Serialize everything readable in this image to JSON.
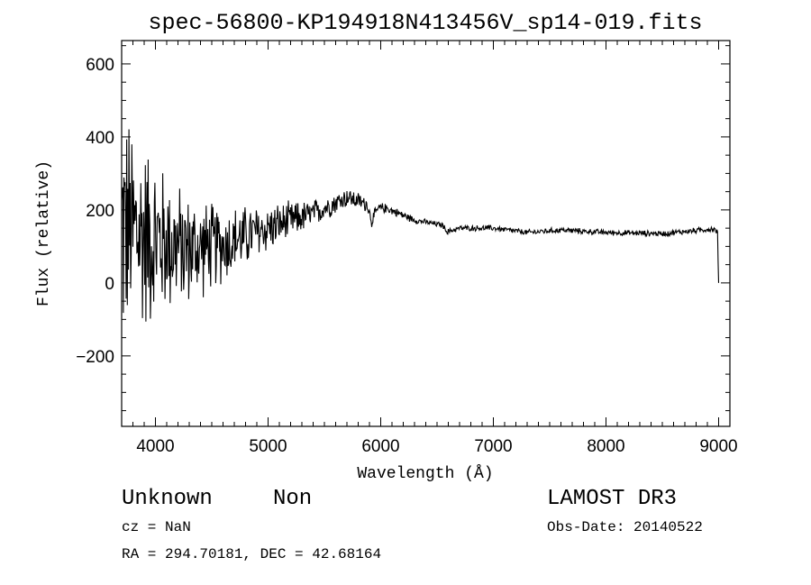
{
  "chart_data": {
    "type": "line",
    "title": "spec-56800-KP194918N413456V_sp14-019.fits",
    "xlabel": "Wavelength (Å)",
    "ylabel": "Flux (relative)",
    "xlim": [
      3700,
      9100
    ],
    "ylim": [
      -393,
      664
    ],
    "x_ticks": [
      4000,
      5000,
      6000,
      7000,
      8000,
      9000
    ],
    "x_tick_labels": [
      "4000",
      "5000",
      "6000",
      "7000",
      "8000",
      "9000"
    ],
    "y_ticks": [
      -200,
      0,
      200,
      400,
      600
    ],
    "y_tick_labels": [
      "−200",
      "0",
      "200",
      "400",
      "600"
    ],
    "x_minor_step": 100,
    "y_minor_step": 50,
    "grid": false,
    "series": [
      {
        "name": "spectrum",
        "wavelength_step": 5,
        "continuum": [
          [
            3700,
            150
          ],
          [
            4000,
            120
          ],
          [
            4300,
            90
          ],
          [
            4600,
            105
          ],
          [
            5000,
            150
          ],
          [
            5400,
            190
          ],
          [
            5700,
            235
          ],
          [
            5880,
            215
          ],
          [
            5920,
            170
          ],
          [
            5980,
            205
          ],
          [
            6050,
            205
          ],
          [
            6300,
            172
          ],
          [
            6550,
            158
          ],
          [
            6590,
            140
          ],
          [
            6700,
            150
          ],
          [
            7000,
            150
          ],
          [
            7300,
            138
          ],
          [
            7600,
            145
          ],
          [
            8000,
            138
          ],
          [
            8500,
            135
          ],
          [
            8950,
            148
          ],
          [
            8990,
            140
          ],
          [
            8995,
            60
          ],
          [
            9000,
            0
          ]
        ],
        "noise_amplitude": [
          [
            3700,
            380
          ],
          [
            3900,
            300
          ],
          [
            4100,
            220
          ],
          [
            4300,
            170
          ],
          [
            4600,
            120
          ],
          [
            5000,
            75
          ],
          [
            5400,
            42
          ],
          [
            5800,
            28
          ],
          [
            6000,
            16
          ],
          [
            6400,
            9
          ],
          [
            9000,
            9
          ]
        ]
      }
    ]
  },
  "footer": {
    "object_type": "Unknown",
    "subclass": "Non",
    "cz": "cz = NaN",
    "coords": "RA = 294.70181, DEC =  42.68164",
    "survey": "LAMOST DR3",
    "obs_date": "Obs-Date: 20140522"
  }
}
